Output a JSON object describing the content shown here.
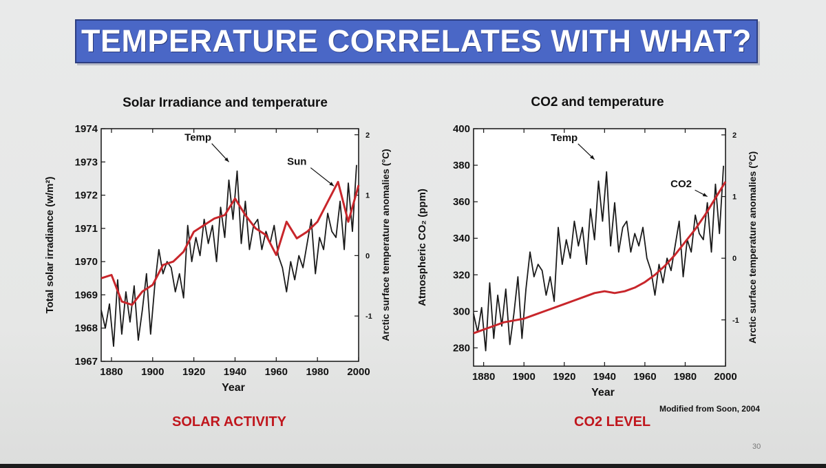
{
  "slide": {
    "title": "TEMPERATURE CORRELATES WITH WHAT?",
    "page_number": "30",
    "credit": "Modified from Soon, 2004",
    "captions": [
      "SOLAR ACTIVITY",
      "CO2 LEVEL"
    ]
  },
  "colors": {
    "banner": "#4a67c6",
    "caption": "#c0161d",
    "temp_line": "#1a1a1a",
    "driver_line": "#c8262b"
  },
  "chart_data": [
    {
      "type": "line",
      "title": "Solar Irradiance and temperature",
      "xlabel": "Year",
      "ylabel": "Total solar irradiance (w/m²)",
      "y2label": "Arctic surface temperature anomalies (°C)",
      "xlim": [
        1875,
        2000
      ],
      "ylim": [
        1967,
        1974
      ],
      "y2lim": [
        -1.75,
        2.1
      ],
      "xticks": [
        1880,
        1900,
        1920,
        1940,
        1960,
        1980,
        2000
      ],
      "yticks": [
        1967,
        1968,
        1969,
        1970,
        1971,
        1972,
        1973,
        1974
      ],
      "y2ticks": [
        -1,
        0,
        1,
        2
      ],
      "annotations": [
        {
          "text": "Temp",
          "x": 1937,
          "y2": 1.55,
          "label_x": 1922,
          "label_y2": 1.9
        },
        {
          "text": "Sun",
          "x": 1988,
          "y2": 1.15,
          "label_x": 1970,
          "label_y2": 1.5
        }
      ],
      "series": [
        {
          "name": "Temp",
          "axis": "right",
          "x": [
            1875,
            1877,
            1879,
            1881,
            1883,
            1885,
            1887,
            1889,
            1891,
            1893,
            1895,
            1897,
            1899,
            1901,
            1903,
            1905,
            1907,
            1909,
            1911,
            1913,
            1915,
            1917,
            1919,
            1921,
            1923,
            1925,
            1927,
            1929,
            1931,
            1933,
            1935,
            1937,
            1939,
            1941,
            1943,
            1945,
            1947,
            1949,
            1951,
            1953,
            1955,
            1957,
            1959,
            1961,
            1963,
            1965,
            1967,
            1969,
            1971,
            1973,
            1975,
            1977,
            1979,
            1981,
            1983,
            1985,
            1987,
            1989,
            1991,
            1993,
            1995,
            1997,
            1999
          ],
          "values": [
            -0.9,
            -1.2,
            -0.8,
            -1.5,
            -0.4,
            -1.3,
            -0.6,
            -1.1,
            -0.5,
            -1.4,
            -0.9,
            -0.3,
            -1.3,
            -0.5,
            0.1,
            -0.3,
            -0.1,
            -0.2,
            -0.6,
            -0.3,
            -0.7,
            0.5,
            -0.1,
            0.3,
            0.0,
            0.6,
            0.2,
            0.5,
            -0.1,
            0.8,
            0.3,
            1.25,
            0.6,
            1.4,
            0.2,
            0.9,
            0.1,
            0.5,
            0.6,
            0.1,
            0.4,
            0.2,
            0.5,
            0.0,
            -0.2,
            -0.6,
            -0.1,
            -0.4,
            0.0,
            -0.2,
            0.2,
            0.6,
            -0.3,
            0.3,
            0.1,
            0.7,
            0.4,
            0.3,
            0.9,
            0.1,
            1.2,
            0.4,
            1.5
          ]
        },
        {
          "name": "Sun",
          "axis": "left",
          "x": [
            1875,
            1880,
            1885,
            1890,
            1895,
            1900,
            1905,
            1910,
            1915,
            1920,
            1925,
            1930,
            1935,
            1940,
            1945,
            1950,
            1955,
            1960,
            1965,
            1970,
            1975,
            1980,
            1985,
            1990,
            1995,
            2000
          ],
          "values": [
            1969.5,
            1969.6,
            1968.8,
            1968.7,
            1969.1,
            1969.3,
            1969.9,
            1970.0,
            1970.3,
            1970.9,
            1971.1,
            1971.3,
            1971.4,
            1971.9,
            1971.4,
            1971.0,
            1970.8,
            1970.2,
            1971.2,
            1970.7,
            1970.9,
            1971.2,
            1971.8,
            1972.4,
            1971.2,
            1972.3
          ]
        }
      ]
    },
    {
      "type": "line",
      "title": "CO2 and temperature",
      "xlabel": "Year",
      "ylabel": "Atmospheric CO₂ (ppm)",
      "y2label": "Arctic surface temperature anomalies (°C)",
      "xlim": [
        1875,
        2000
      ],
      "ylim": [
        270,
        400
      ],
      "y2lim": [
        -1.75,
        2.1
      ],
      "xticks": [
        1880,
        1900,
        1920,
        1940,
        1960,
        1980,
        2000
      ],
      "yticks": [
        280,
        300,
        320,
        340,
        360,
        380,
        400
      ],
      "y2ticks": [
        -1,
        0,
        1,
        2
      ],
      "annotations": [
        {
          "text": "Temp",
          "x": 1935,
          "y2": 1.6,
          "label_x": 1920,
          "label_y2": 1.9
        },
        {
          "text": "CO2",
          "x": 1991,
          "y2": 1.0,
          "label_x": 1978,
          "label_y2": 1.15
        }
      ],
      "series": [
        {
          "name": "Temp",
          "axis": "right",
          "x": [
            1875,
            1877,
            1879,
            1881,
            1883,
            1885,
            1887,
            1889,
            1891,
            1893,
            1895,
            1897,
            1899,
            1901,
            1903,
            1905,
            1907,
            1909,
            1911,
            1913,
            1915,
            1917,
            1919,
            1921,
            1923,
            1925,
            1927,
            1929,
            1931,
            1933,
            1935,
            1937,
            1939,
            1941,
            1943,
            1945,
            1947,
            1949,
            1951,
            1953,
            1955,
            1957,
            1959,
            1961,
            1963,
            1965,
            1967,
            1969,
            1971,
            1973,
            1975,
            1977,
            1979,
            1981,
            1983,
            1985,
            1987,
            1989,
            1991,
            1993,
            1995,
            1997,
            1999
          ],
          "values": [
            -0.9,
            -1.2,
            -0.8,
            -1.5,
            -0.4,
            -1.3,
            -0.6,
            -1.1,
            -0.5,
            -1.4,
            -0.9,
            -0.3,
            -1.3,
            -0.5,
            0.1,
            -0.3,
            -0.1,
            -0.2,
            -0.6,
            -0.3,
            -0.7,
            0.5,
            -0.1,
            0.3,
            0.0,
            0.6,
            0.2,
            0.5,
            -0.1,
            0.8,
            0.3,
            1.25,
            0.6,
            1.4,
            0.2,
            0.9,
            0.1,
            0.5,
            0.6,
            0.1,
            0.4,
            0.2,
            0.5,
            0.0,
            -0.2,
            -0.6,
            -0.1,
            -0.4,
            0.0,
            -0.2,
            0.2,
            0.6,
            -0.3,
            0.3,
            0.1,
            0.7,
            0.4,
            0.3,
            0.9,
            0.1,
            1.2,
            0.4,
            1.5
          ]
        },
        {
          "name": "CO2",
          "axis": "left",
          "x": [
            1875,
            1880,
            1885,
            1890,
            1895,
            1900,
            1905,
            1910,
            1915,
            1920,
            1925,
            1930,
            1935,
            1940,
            1945,
            1950,
            1955,
            1960,
            1965,
            1970,
            1975,
            1980,
            1985,
            1990,
            1995,
            2000
          ],
          "values": [
            288,
            290,
            292,
            294,
            295,
            296,
            298,
            300,
            302,
            304,
            306,
            308,
            310,
            311,
            310,
            311,
            313,
            316,
            320,
            325,
            331,
            338,
            345,
            353,
            362,
            371
          ]
        }
      ]
    }
  ]
}
